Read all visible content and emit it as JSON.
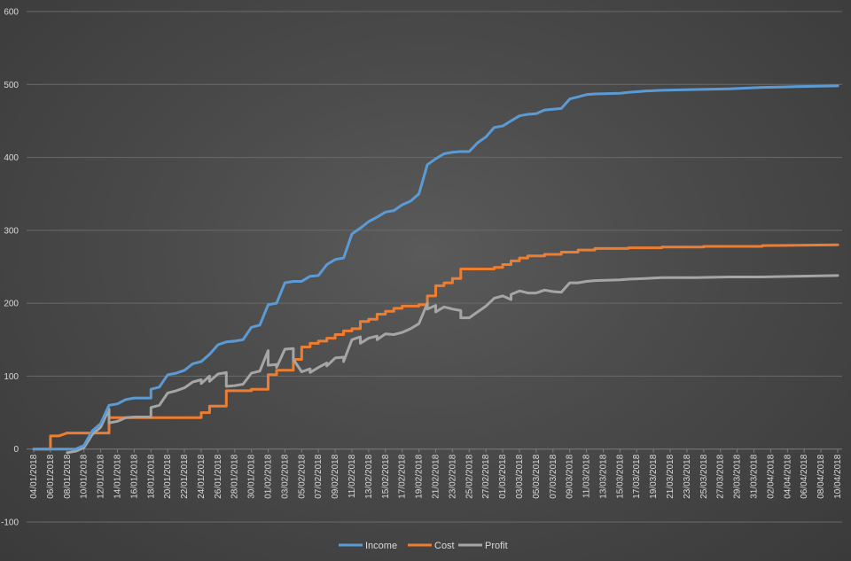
{
  "chart_data": {
    "type": "line",
    "title": "",
    "xlabel": "",
    "ylabel": "",
    "ylim": [
      -100,
      600
    ],
    "yticks": [
      -100,
      0,
      100,
      200,
      300,
      400,
      500,
      600
    ],
    "x_range": [
      "04/01/2018",
      "10/04/2018"
    ],
    "x_tick_labels": [
      "04/01/2018",
      "06/01/2018",
      "08/01/2018",
      "10/01/2018",
      "12/01/2018",
      "14/01/2018",
      "16/01/2018",
      "18/01/2018",
      "20/01/2018",
      "22/01/2018",
      "24/01/2018",
      "26/01/2018",
      "28/01/2018",
      "30/01/2018",
      "01/02/2018",
      "03/02/2018",
      "05/02/2018",
      "07/02/2018",
      "09/02/2018",
      "11/02/2018",
      "13/02/2018",
      "15/02/2018",
      "17/02/2018",
      "19/02/2018",
      "21/02/2018",
      "23/02/2018",
      "25/02/2018",
      "27/02/2018",
      "01/03/2018",
      "03/03/2018",
      "05/03/2018",
      "07/03/2018",
      "09/03/2018",
      "11/03/2018",
      "13/03/2018",
      "15/03/2018",
      "17/03/2018",
      "19/03/2018",
      "21/03/2018",
      "23/03/2018",
      "25/03/2018",
      "27/03/2018",
      "29/03/2018",
      "31/03/2018",
      "02/04/2018",
      "04/04/2018",
      "06/04/2018",
      "08/04/2018",
      "10/04/2018"
    ],
    "grid": true,
    "legend_position": "bottom",
    "series": [
      {
        "name": "Income",
        "color": "#5b9bd5",
        "points": [
          [
            "04/01/2018",
            0
          ],
          [
            "08/01/2018",
            0
          ],
          [
            "09/01/2018",
            0
          ],
          [
            "10/01/2018",
            5
          ],
          [
            "11/01/2018",
            25
          ],
          [
            "12/01/2018",
            35
          ],
          [
            "13/01/2018",
            60
          ],
          [
            "14/01/2018",
            62
          ],
          [
            "15/01/2018",
            68
          ],
          [
            "16/01/2018",
            70
          ],
          [
            "17/01/2018",
            70
          ],
          [
            "18/01/2018",
            70
          ],
          [
            "18/01/2018",
            82
          ],
          [
            "19/01/2018",
            85
          ],
          [
            "20/01/2018",
            102
          ],
          [
            "21/01/2018",
            104
          ],
          [
            "22/01/2018",
            108
          ],
          [
            "23/01/2018",
            117
          ],
          [
            "24/01/2018",
            120
          ],
          [
            "25/01/2018",
            130
          ],
          [
            "26/01/2018",
            143
          ],
          [
            "27/01/2018",
            147
          ],
          [
            "28/01/2018",
            148
          ],
          [
            "29/01/2018",
            150
          ],
          [
            "30/01/2018",
            167
          ],
          [
            "31/01/2018",
            170
          ],
          [
            "01/02/2018",
            198
          ],
          [
            "02/02/2018",
            200
          ],
          [
            "03/02/2018",
            228
          ],
          [
            "04/02/2018",
            230
          ],
          [
            "05/02/2018",
            230
          ],
          [
            "06/02/2018",
            237
          ],
          [
            "07/02/2018",
            238
          ],
          [
            "08/02/2018",
            253
          ],
          [
            "09/02/2018",
            260
          ],
          [
            "10/02/2018",
            262
          ],
          [
            "11/02/2018",
            295
          ],
          [
            "12/02/2018",
            303
          ],
          [
            "13/02/2018",
            312
          ],
          [
            "14/02/2018",
            318
          ],
          [
            "15/02/2018",
            325
          ],
          [
            "16/02/2018",
            327
          ],
          [
            "17/02/2018",
            335
          ],
          [
            "18/02/2018",
            340
          ],
          [
            "19/02/2018",
            350
          ],
          [
            "20/02/2018",
            390
          ],
          [
            "21/02/2018",
            398
          ],
          [
            "22/02/2018",
            405
          ],
          [
            "23/02/2018",
            407
          ],
          [
            "24/02/2018",
            408
          ],
          [
            "25/02/2018",
            408
          ],
          [
            "26/02/2018",
            420
          ],
          [
            "27/02/2018",
            428
          ],
          [
            "28/02/2018",
            441
          ],
          [
            "01/03/2018",
            443
          ],
          [
            "02/03/2018",
            450
          ],
          [
            "03/03/2018",
            457
          ],
          [
            "04/03/2018",
            459
          ],
          [
            "05/03/2018",
            460
          ],
          [
            "06/03/2018",
            465
          ],
          [
            "07/03/2018",
            466
          ],
          [
            "08/03/2018",
            467
          ],
          [
            "09/03/2018",
            480
          ],
          [
            "10/03/2018",
            483
          ],
          [
            "11/03/2018",
            486
          ],
          [
            "12/03/2018",
            487
          ],
          [
            "15/03/2018",
            488
          ],
          [
            "16/03/2018",
            489
          ],
          [
            "18/03/2018",
            491
          ],
          [
            "20/03/2018",
            492
          ],
          [
            "24/03/2018",
            493
          ],
          [
            "28/03/2018",
            494
          ],
          [
            "01/04/2018",
            496
          ],
          [
            "05/04/2018",
            497
          ],
          [
            "10/04/2018",
            498
          ]
        ]
      },
      {
        "name": "Cost",
        "color": "#ed7d31",
        "points": [
          [
            "04/01/2018",
            0
          ],
          [
            "06/01/2018",
            0
          ],
          [
            "06/01/2018",
            18
          ],
          [
            "07/01/2018",
            18
          ],
          [
            "08/01/2018",
            22
          ],
          [
            "12/01/2018",
            22
          ],
          [
            "13/01/2018",
            22
          ],
          [
            "13/01/2018",
            43
          ],
          [
            "24/01/2018",
            43
          ],
          [
            "24/01/2018",
            50
          ],
          [
            "25/01/2018",
            50
          ],
          [
            "25/01/2018",
            59
          ],
          [
            "27/01/2018",
            59
          ],
          [
            "27/01/2018",
            80
          ],
          [
            "30/01/2018",
            80
          ],
          [
            "30/01/2018",
            82
          ],
          [
            "01/02/2018",
            82
          ],
          [
            "01/02/2018",
            102
          ],
          [
            "02/02/2018",
            102
          ],
          [
            "02/02/2018",
            108
          ],
          [
            "04/02/2018",
            108
          ],
          [
            "04/02/2018",
            123
          ],
          [
            "05/02/2018",
            123
          ],
          [
            "05/02/2018",
            140
          ],
          [
            "06/02/2018",
            140
          ],
          [
            "06/02/2018",
            145
          ],
          [
            "07/02/2018",
            145
          ],
          [
            "07/02/2018",
            148
          ],
          [
            "08/02/2018",
            148
          ],
          [
            "08/02/2018",
            152
          ],
          [
            "09/02/2018",
            152
          ],
          [
            "09/02/2018",
            157
          ],
          [
            "10/02/2018",
            157
          ],
          [
            "10/02/2018",
            162
          ],
          [
            "11/02/2018",
            162
          ],
          [
            "11/02/2018",
            165
          ],
          [
            "12/02/2018",
            165
          ],
          [
            "12/02/2018",
            175
          ],
          [
            "13/02/2018",
            175
          ],
          [
            "13/02/2018",
            178
          ],
          [
            "14/02/2018",
            178
          ],
          [
            "14/02/2018",
            185
          ],
          [
            "15/02/2018",
            185
          ],
          [
            "15/02/2018",
            189
          ],
          [
            "16/02/2018",
            189
          ],
          [
            "16/02/2018",
            193
          ],
          [
            "17/02/2018",
            193
          ],
          [
            "17/02/2018",
            196
          ],
          [
            "19/02/2018",
            196
          ],
          [
            "19/02/2018",
            198
          ],
          [
            "20/02/2018",
            198
          ],
          [
            "20/02/2018",
            210
          ],
          [
            "21/02/2018",
            210
          ],
          [
            "21/02/2018",
            224
          ],
          [
            "22/02/2018",
            224
          ],
          [
            "22/02/2018",
            228
          ],
          [
            "23/02/2018",
            228
          ],
          [
            "23/02/2018",
            234
          ],
          [
            "24/02/2018",
            234
          ],
          [
            "24/02/2018",
            247
          ],
          [
            "28/02/2018",
            247
          ],
          [
            "28/02/2018",
            249
          ],
          [
            "01/03/2018",
            249
          ],
          [
            "01/03/2018",
            253
          ],
          [
            "02/03/2018",
            253
          ],
          [
            "02/03/2018",
            258
          ],
          [
            "03/03/2018",
            258
          ],
          [
            "03/03/2018",
            262
          ],
          [
            "04/03/2018",
            262
          ],
          [
            "04/03/2018",
            265
          ],
          [
            "06/03/2018",
            265
          ],
          [
            "06/03/2018",
            267
          ],
          [
            "08/03/2018",
            267
          ],
          [
            "08/03/2018",
            270
          ],
          [
            "10/03/2018",
            270
          ],
          [
            "10/03/2018",
            273
          ],
          [
            "12/03/2018",
            273
          ],
          [
            "12/03/2018",
            275
          ],
          [
            "16/03/2018",
            275
          ],
          [
            "16/03/2018",
            276
          ],
          [
            "20/03/2018",
            276
          ],
          [
            "20/03/2018",
            277
          ],
          [
            "25/03/2018",
            277
          ],
          [
            "25/03/2018",
            278
          ],
          [
            "01/04/2018",
            278
          ],
          [
            "01/04/2018",
            279
          ],
          [
            "10/04/2018",
            280
          ]
        ]
      },
      {
        "name": "Profit",
        "color": "#a5a5a5",
        "points": [
          [
            "08/01/2018",
            -5
          ],
          [
            "09/01/2018",
            -3
          ],
          [
            "10/01/2018",
            2
          ],
          [
            "11/01/2018",
            20
          ],
          [
            "12/01/2018",
            30
          ],
          [
            "13/01/2018",
            55
          ],
          [
            "13/01/2018",
            36
          ],
          [
            "14/01/2018",
            38
          ],
          [
            "15/01/2018",
            43
          ],
          [
            "16/01/2018",
            44
          ],
          [
            "17/01/2018",
            44
          ],
          [
            "18/01/2018",
            44
          ],
          [
            "18/01/2018",
            57
          ],
          [
            "19/01/2018",
            60
          ],
          [
            "20/01/2018",
            77
          ],
          [
            "21/01/2018",
            80
          ],
          [
            "22/01/2018",
            84
          ],
          [
            "23/01/2018",
            92
          ],
          [
            "24/01/2018",
            95
          ],
          [
            "24/01/2018",
            90
          ],
          [
            "25/01/2018",
            100
          ],
          [
            "25/01/2018",
            93
          ],
          [
            "26/01/2018",
            103
          ],
          [
            "27/01/2018",
            105
          ],
          [
            "27/01/2018",
            86
          ],
          [
            "28/01/2018",
            87
          ],
          [
            "29/01/2018",
            89
          ],
          [
            "30/01/2018",
            104
          ],
          [
            "31/01/2018",
            107
          ],
          [
            "01/02/2018",
            135
          ],
          [
            "01/02/2018",
            115
          ],
          [
            "02/02/2018",
            116
          ],
          [
            "02/02/2018",
            112
          ],
          [
            "03/02/2018",
            137
          ],
          [
            "04/02/2018",
            138
          ],
          [
            "04/02/2018",
            123
          ],
          [
            "05/02/2018",
            106
          ],
          [
            "06/02/2018",
            110
          ],
          [
            "06/02/2018",
            105
          ],
          [
            "07/02/2018",
            112
          ],
          [
            "08/02/2018",
            118
          ],
          [
            "08/02/2018",
            114
          ],
          [
            "09/02/2018",
            125
          ],
          [
            "10/02/2018",
            126
          ],
          [
            "10/02/2018",
            120
          ],
          [
            "11/02/2018",
            150
          ],
          [
            "12/02/2018",
            154
          ],
          [
            "12/02/2018",
            145
          ],
          [
            "13/02/2018",
            152
          ],
          [
            "14/02/2018",
            155
          ],
          [
            "14/02/2018",
            150
          ],
          [
            "15/02/2018",
            158
          ],
          [
            "16/02/2018",
            157
          ],
          [
            "17/02/2018",
            160
          ],
          [
            "18/02/2018",
            165
          ],
          [
            "19/02/2018",
            172
          ],
          [
            "20/02/2018",
            200
          ],
          [
            "20/02/2018",
            192
          ],
          [
            "21/02/2018",
            197
          ],
          [
            "21/02/2018",
            188
          ],
          [
            "22/02/2018",
            195
          ],
          [
            "23/02/2018",
            192
          ],
          [
            "24/02/2018",
            190
          ],
          [
            "24/02/2018",
            180
          ],
          [
            "25/02/2018",
            180
          ],
          [
            "26/02/2018",
            188
          ],
          [
            "27/02/2018",
            196
          ],
          [
            "28/02/2018",
            207
          ],
          [
            "01/03/2018",
            210
          ],
          [
            "02/03/2018",
            205
          ],
          [
            "02/03/2018",
            212
          ],
          [
            "03/03/2018",
            217
          ],
          [
            "04/03/2018",
            214
          ],
          [
            "05/03/2018",
            214
          ],
          [
            "06/03/2018",
            218
          ],
          [
            "07/03/2018",
            216
          ],
          [
            "08/03/2018",
            215
          ],
          [
            "09/03/2018",
            228
          ],
          [
            "10/03/2018",
            228
          ],
          [
            "11/03/2018",
            230
          ],
          [
            "12/03/2018",
            231
          ],
          [
            "15/03/2018",
            232
          ],
          [
            "16/03/2018",
            233
          ],
          [
            "18/03/2018",
            234
          ],
          [
            "20/03/2018",
            235
          ],
          [
            "24/03/2018",
            235
          ],
          [
            "28/03/2018",
            236
          ],
          [
            "01/04/2018",
            236
          ],
          [
            "05/04/2018",
            237
          ],
          [
            "10/04/2018",
            238
          ]
        ]
      }
    ]
  }
}
